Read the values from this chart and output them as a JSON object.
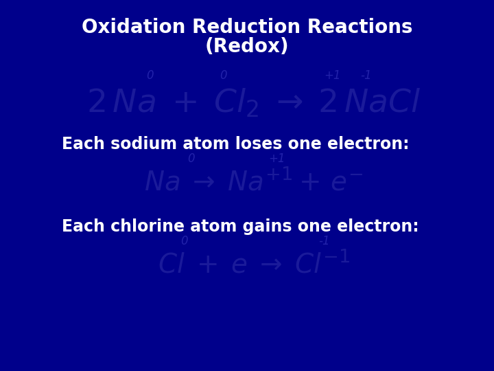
{
  "background_color": "#00008B",
  "title_line1": "Oxidation Reduction Reactions",
  "title_line2": "(Redox)",
  "title_color": "#FFFFFF",
  "title_fontsize": 20,
  "eq_color": "#1a1a9a",
  "ox_color": "#2222aa",
  "label_color": "#FFFFFF",
  "label_fontsize": 17,
  "eq1_fontsize": 34,
  "eq2_fontsize": 28,
  "ox_fontsize": 12,
  "label1": "Each sodium atom loses one electron:",
  "label2": "Each chlorine atom gains one electron:"
}
